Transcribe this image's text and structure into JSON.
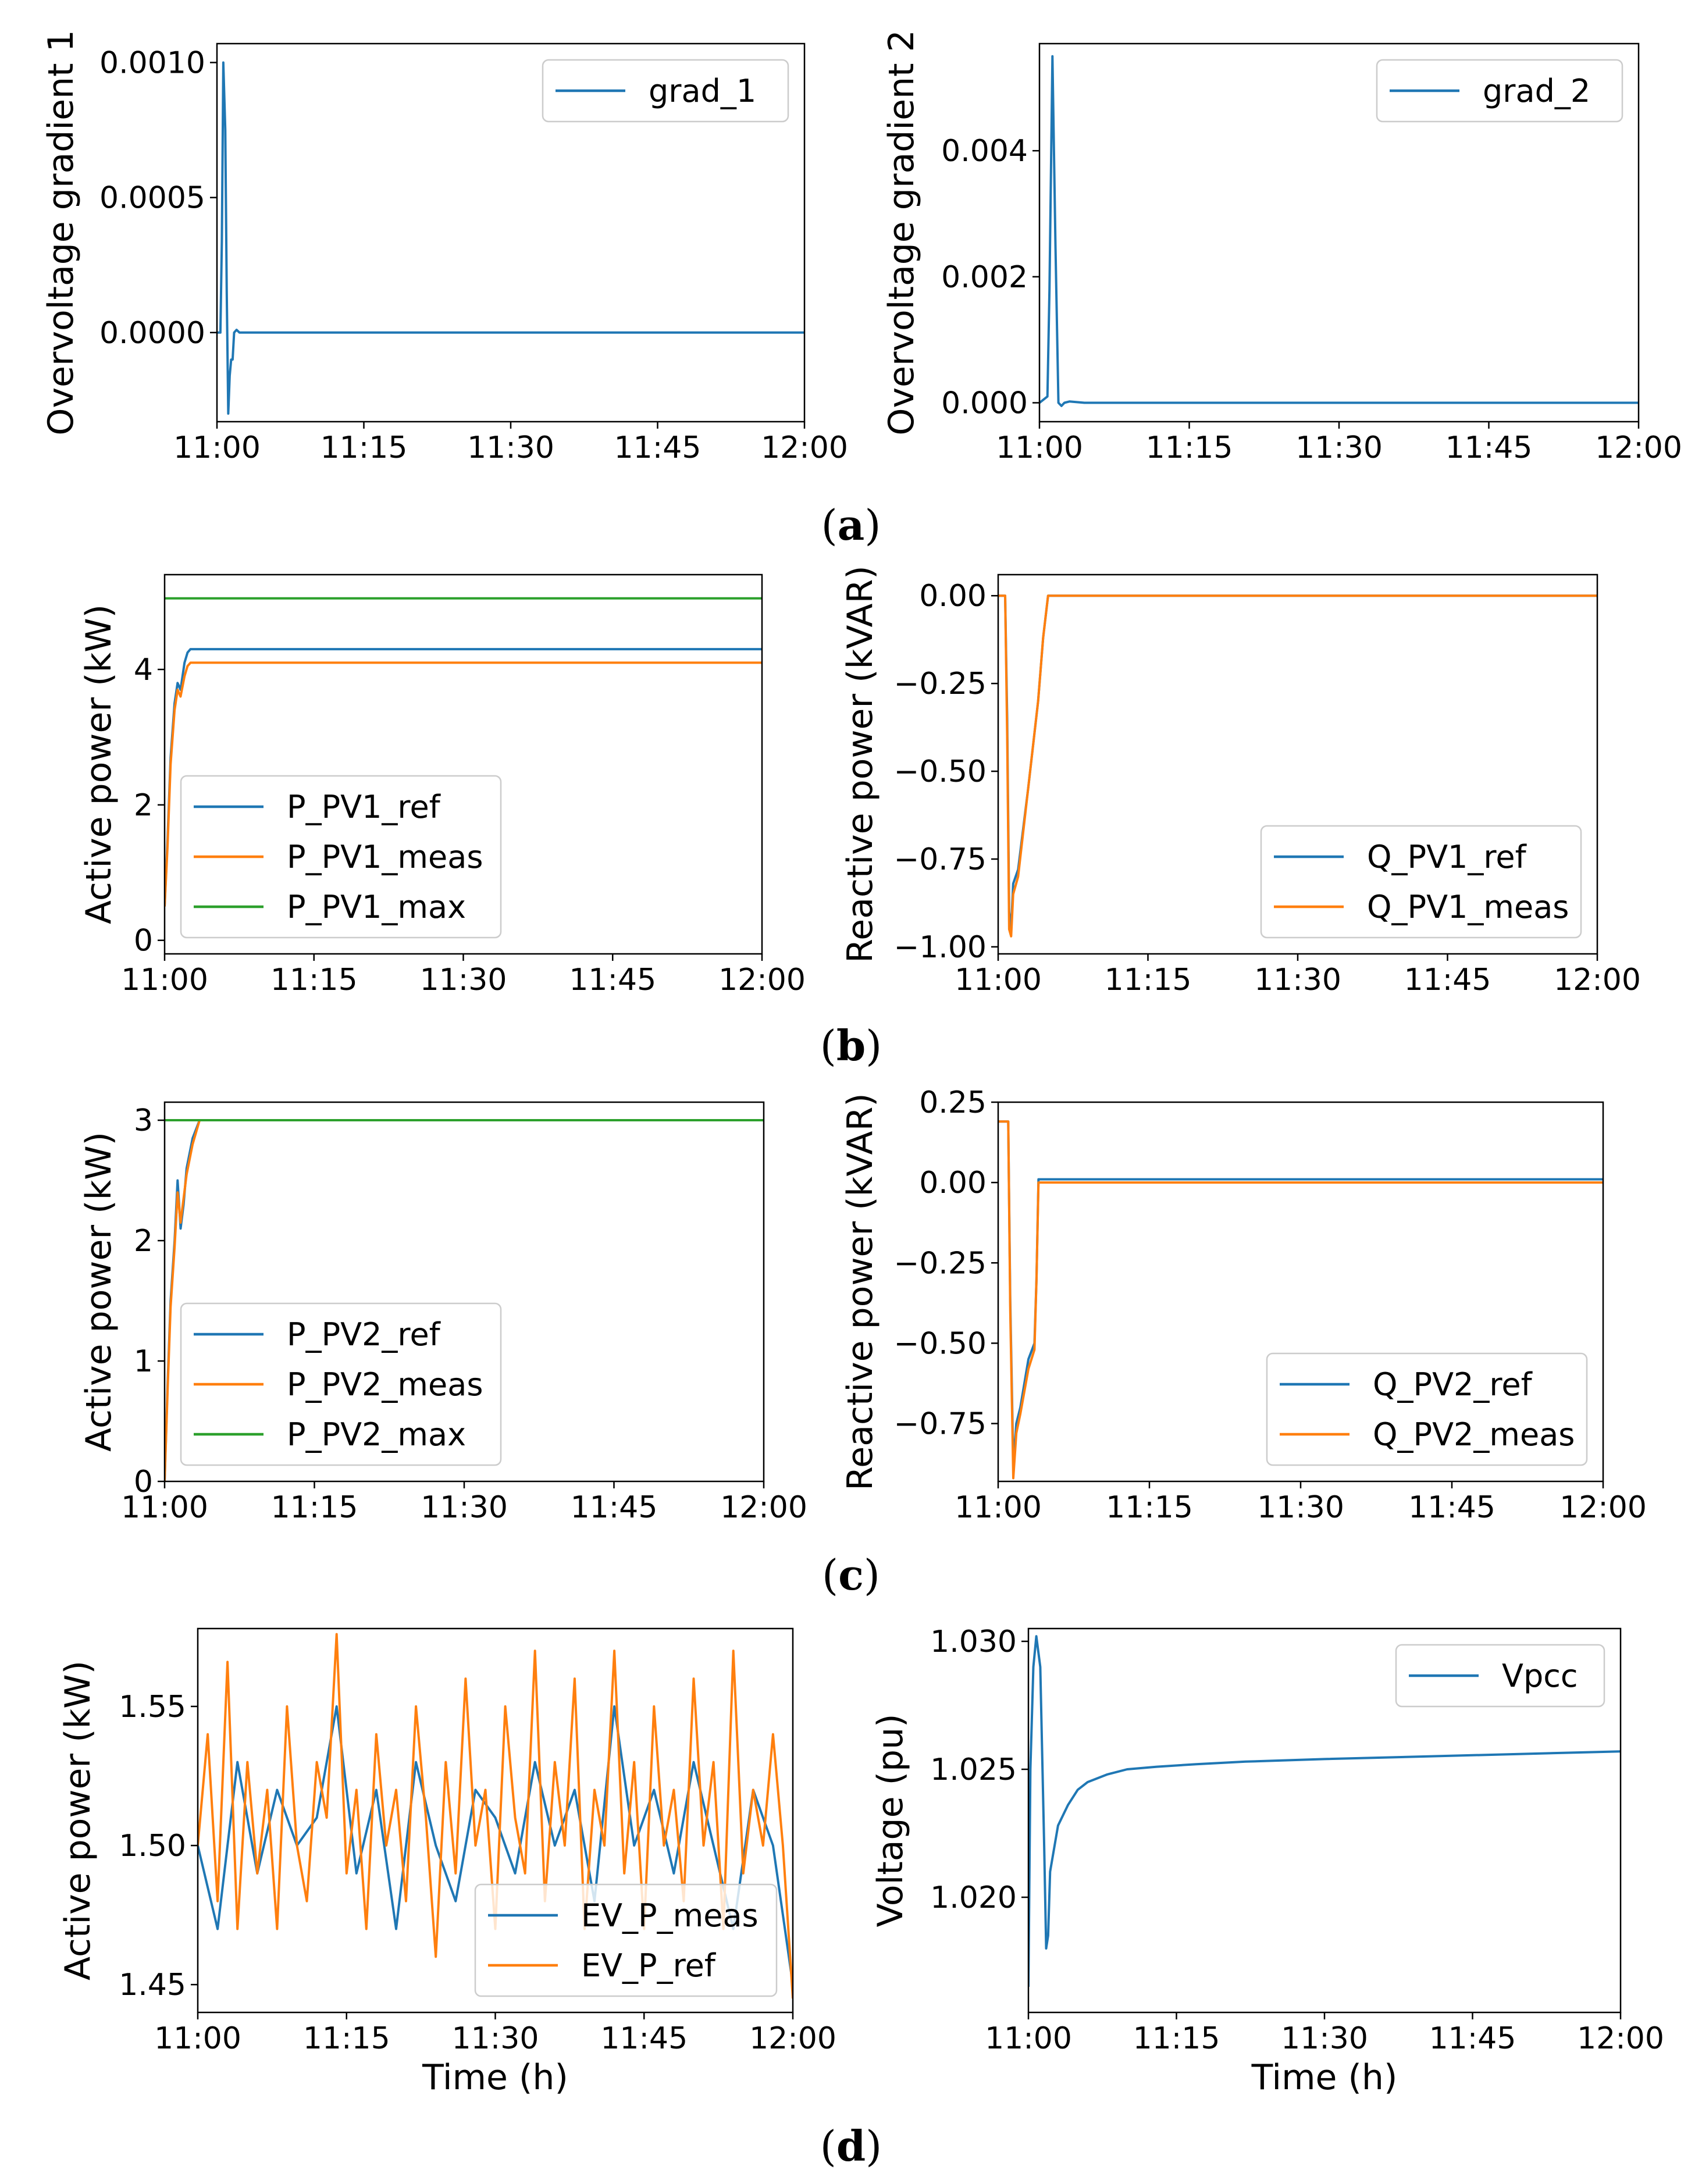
{
  "chart_data": [
    {
      "id": "a-left",
      "type": "line",
      "ylabel": "Overvoltage gradient 1",
      "xlabel": "",
      "xlim": [
        0,
        60
      ],
      "ylim": [
        -0.00033,
        0.00107
      ],
      "xticks": [
        0,
        15,
        30,
        45,
        60
      ],
      "xtick_labels": [
        "11:00",
        "11:15",
        "11:30",
        "11:45",
        "12:00"
      ],
      "yticks": [
        0,
        0.0005,
        0.001
      ],
      "ytick_labels": [
        "0.0000",
        "0.0005",
        "0.0010"
      ],
      "legend_position": "top-right",
      "series": [
        {
          "name": "grad_1",
          "color": "#1f77b4",
          "x": [
            0,
            0.35,
            0.5,
            0.65,
            0.85,
            1.0,
            1.15,
            1.3,
            1.45,
            1.6,
            1.75,
            2.0,
            2.3,
            2.6,
            60
          ],
          "y": [
            0,
            0,
            0.00034,
            0.001,
            0.00075,
            0.00015,
            -0.0003,
            -0.00016,
            -0.0001,
            -0.0001,
            0.0,
            1e-05,
            0.0,
            0.0,
            0.0
          ]
        }
      ]
    },
    {
      "id": "a-right",
      "type": "line",
      "ylabel": "Overvoltage gradient 2",
      "xlabel": "",
      "xlim": [
        0,
        60
      ],
      "ylim": [
        -0.0003,
        0.0057
      ],
      "xticks": [
        0,
        15,
        30,
        45,
        60
      ],
      "xtick_labels": [
        "11:00",
        "11:15",
        "11:30",
        "11:45",
        "12:00"
      ],
      "yticks": [
        0,
        0.002,
        0.004
      ],
      "ytick_labels": [
        "0.000",
        "0.002",
        "0.004"
      ],
      "legend_position": "top-right",
      "series": [
        {
          "name": "grad_2",
          "color": "#1f77b4",
          "x": [
            0,
            0.8,
            1.0,
            1.3,
            1.6,
            1.9,
            2.2,
            2.5,
            3.0,
            4.5,
            60
          ],
          "y": [
            0,
            0.0001,
            0.0018,
            0.0055,
            0.0025,
            0.0,
            -5e-05,
            0.0,
            2e-05,
            0.0,
            0.0
          ]
        }
      ]
    },
    {
      "id": "b-left",
      "type": "line",
      "ylabel": "Active power (kW)",
      "xlabel": "",
      "xlim": [
        0,
        60
      ],
      "ylim": [
        -0.2,
        5.4
      ],
      "xticks": [
        0,
        15,
        30,
        45,
        60
      ],
      "xtick_labels": [
        "11:00",
        "11:15",
        "11:30",
        "11:45",
        "12:00"
      ],
      "yticks": [
        0,
        2,
        4
      ],
      "ytick_labels": [
        "0",
        "2",
        "4"
      ],
      "legend_position": "bottom-left",
      "series": [
        {
          "name": "P_PV1_ref",
          "color": "#1f77b4",
          "x": [
            0,
            0.3,
            0.6,
            1.0,
            1.3,
            1.6,
            2.0,
            2.3,
            2.6,
            3.0,
            60
          ],
          "y": [
            0.5,
            1.5,
            2.7,
            3.5,
            3.8,
            3.7,
            4.1,
            4.25,
            4.3,
            4.3,
            4.3
          ]
        },
        {
          "name": "P_PV1_meas",
          "color": "#ff7f0e",
          "x": [
            0,
            0.3,
            0.6,
            1.0,
            1.3,
            1.6,
            2.0,
            2.3,
            2.6,
            3.0,
            60
          ],
          "y": [
            0.5,
            1.4,
            2.6,
            3.4,
            3.7,
            3.6,
            3.9,
            4.05,
            4.1,
            4.1,
            4.1
          ]
        },
        {
          "name": "P_PV1_max",
          "color": "#2ca02c",
          "x": [
            0,
            60
          ],
          "y": [
            5.05,
            5.05
          ]
        }
      ]
    },
    {
      "id": "b-right",
      "type": "line",
      "ylabel": "Reactive power (kVAR)",
      "xlabel": "",
      "xlim": [
        0,
        60
      ],
      "ylim": [
        -1.02,
        0.06
      ],
      "xticks": [
        0,
        15,
        30,
        45,
        60
      ],
      "xtick_labels": [
        "11:00",
        "11:15",
        "11:30",
        "11:45",
        "12:00"
      ],
      "yticks": [
        -1,
        -0.75,
        -0.5,
        -0.25,
        0
      ],
      "ytick_labels": [
        "−1.00",
        "−0.75",
        "−0.50",
        "−0.25",
        "0.00"
      ],
      "legend_position": "bottom-right",
      "series": [
        {
          "name": "Q_PV1_ref",
          "color": "#1f77b4",
          "x": [
            0,
            0.7,
            0.9,
            1.1,
            1.3,
            1.5,
            2.0,
            3.0,
            4.0,
            4.5,
            5.0,
            60
          ],
          "y": [
            0,
            0,
            -0.35,
            -0.9,
            -0.95,
            -0.82,
            -0.78,
            -0.55,
            -0.3,
            -0.12,
            0.0,
            0.0
          ]
        },
        {
          "name": "Q_PV1_meas",
          "color": "#ff7f0e",
          "x": [
            0,
            0.7,
            0.9,
            1.1,
            1.3,
            1.5,
            2.0,
            3.0,
            4.0,
            4.5,
            5.0,
            60
          ],
          "y": [
            0,
            0,
            -0.4,
            -0.95,
            -0.97,
            -0.85,
            -0.8,
            -0.55,
            -0.3,
            -0.12,
            0.0,
            0.0
          ]
        }
      ]
    },
    {
      "id": "c-left",
      "type": "line",
      "ylabel": "Active power (kW)",
      "xlabel": "",
      "xlim": [
        0,
        60
      ],
      "ylim": [
        0,
        3.15
      ],
      "xticks": [
        0,
        15,
        30,
        45,
        60
      ],
      "xtick_labels": [
        "11:00",
        "11:15",
        "11:30",
        "11:45",
        "12:00"
      ],
      "yticks": [
        0,
        1,
        2,
        3
      ],
      "ytick_labels": [
        "0",
        "1",
        "2",
        "3"
      ],
      "legend_position": "bottom-left",
      "series": [
        {
          "name": "P_PV2_ref",
          "color": "#1f77b4",
          "x": [
            0,
            0.3,
            0.6,
            1.0,
            1.3,
            1.6,
            1.9,
            2.2,
            2.8,
            3.5,
            4.0,
            60
          ],
          "y": [
            0,
            0.8,
            1.5,
            2.0,
            2.5,
            2.1,
            2.3,
            2.6,
            2.85,
            3.0,
            3.0,
            3.0
          ]
        },
        {
          "name": "P_PV2_meas",
          "color": "#ff7f0e",
          "x": [
            0,
            0.3,
            0.6,
            1.0,
            1.3,
            1.6,
            1.9,
            2.2,
            2.8,
            3.5,
            4.0,
            60
          ],
          "y": [
            0,
            0.75,
            1.45,
            1.95,
            2.4,
            2.15,
            2.35,
            2.55,
            2.8,
            3.0,
            3.0,
            3.0
          ]
        },
        {
          "name": "P_PV2_max",
          "color": "#2ca02c",
          "x": [
            0,
            60
          ],
          "y": [
            3.0,
            3.0
          ]
        }
      ]
    },
    {
      "id": "c-right",
      "type": "line",
      "ylabel": "Reactive power (kVAR)",
      "xlabel": "",
      "xlim": [
        0,
        60
      ],
      "ylim": [
        -0.93,
        0.25
      ],
      "xticks": [
        0,
        15,
        30,
        45,
        60
      ],
      "xtick_labels": [
        "11:00",
        "11:15",
        "11:30",
        "11:45",
        "12:00"
      ],
      "yticks": [
        -0.75,
        -0.5,
        -0.25,
        0,
        0.25
      ],
      "ytick_labels": [
        "−0.75",
        "−0.50",
        "−0.25",
        "0.00",
        "0.25"
      ],
      "legend_position": "bottom-right",
      "series": [
        {
          "name": "Q_PV2_ref",
          "color": "#1f77b4",
          "x": [
            0,
            1.0,
            1.2,
            1.5,
            1.8,
            2.2,
            3.0,
            3.6,
            3.8,
            4.0,
            60
          ],
          "y": [
            0.19,
            0.19,
            -0.37,
            -0.88,
            -0.75,
            -0.7,
            -0.55,
            -0.5,
            -0.3,
            0.01,
            0.01
          ]
        },
        {
          "name": "Q_PV2_meas",
          "color": "#ff7f0e",
          "x": [
            0,
            1.0,
            1.2,
            1.5,
            1.8,
            2.2,
            3.0,
            3.6,
            3.8,
            4.0,
            60
          ],
          "y": [
            0.19,
            0.19,
            -0.4,
            -0.92,
            -0.78,
            -0.72,
            -0.58,
            -0.52,
            -0.3,
            0.0,
            0.0
          ]
        }
      ]
    },
    {
      "id": "d-left",
      "type": "line",
      "ylabel": "Active power (kW)",
      "xlabel": "Time (h)",
      "xlim": [
        0,
        60
      ],
      "ylim": [
        1.44,
        1.578
      ],
      "xticks": [
        0,
        15,
        30,
        45,
        60
      ],
      "xtick_labels": [
        "11:00",
        "11:15",
        "11:30",
        "11:45",
        "12:00"
      ],
      "yticks": [
        1.45,
        1.5,
        1.55
      ],
      "ytick_labels": [
        "1.45",
        "1.50",
        "1.55"
      ],
      "legend_position": "bottom-right",
      "series": [
        {
          "name": "EV_P_meas",
          "color": "#1f77b4",
          "x": [
            0,
            2,
            4,
            6,
            8,
            10,
            12,
            14,
            16,
            18,
            20,
            22,
            24,
            26,
            28,
            30,
            32,
            34,
            36,
            38,
            40,
            42,
            44,
            46,
            48,
            50,
            52,
            54,
            56,
            58,
            60
          ],
          "y": [
            1.5,
            1.47,
            1.53,
            1.49,
            1.52,
            1.5,
            1.51,
            1.55,
            1.49,
            1.52,
            1.47,
            1.53,
            1.5,
            1.48,
            1.52,
            1.51,
            1.49,
            1.53,
            1.5,
            1.52,
            1.48,
            1.55,
            1.5,
            1.52,
            1.49,
            1.53,
            1.5,
            1.47,
            1.52,
            1.5,
            1.45
          ]
        },
        {
          "name": "EV_P_ref",
          "color": "#ff7f0e",
          "x": [
            0,
            1,
            2,
            3,
            4,
            5,
            6,
            7,
            8,
            9,
            10,
            11,
            12,
            13,
            14,
            15,
            16,
            17,
            18,
            19,
            20,
            21,
            22,
            23,
            24,
            25,
            26,
            27,
            28,
            29,
            30,
            31,
            32,
            33,
            34,
            35,
            36,
            37,
            38,
            39,
            40,
            41,
            42,
            43,
            44,
            45,
            46,
            47,
            48,
            49,
            50,
            51,
            52,
            53,
            54,
            55,
            56,
            57,
            58,
            59,
            60
          ],
          "y": [
            1.5,
            1.54,
            1.48,
            1.566,
            1.47,
            1.53,
            1.49,
            1.52,
            1.47,
            1.55,
            1.5,
            1.48,
            1.53,
            1.51,
            1.576,
            1.49,
            1.52,
            1.47,
            1.54,
            1.5,
            1.52,
            1.48,
            1.55,
            1.51,
            1.46,
            1.53,
            1.49,
            1.56,
            1.5,
            1.52,
            1.47,
            1.55,
            1.51,
            1.49,
            1.57,
            1.48,
            1.53,
            1.5,
            1.56,
            1.47,
            1.52,
            1.5,
            1.57,
            1.49,
            1.53,
            1.47,
            1.55,
            1.5,
            1.52,
            1.48,
            1.56,
            1.5,
            1.53,
            1.47,
            1.57,
            1.49,
            1.52,
            1.5,
            1.54,
            1.5,
            1.445
          ]
        }
      ]
    },
    {
      "id": "d-right",
      "type": "line",
      "ylabel": "Voltage (pu)",
      "xlabel": "Time (h)",
      "xlim": [
        0,
        60
      ],
      "ylim": [
        1.0155,
        1.0305
      ],
      "xticks": [
        0,
        15,
        30,
        45,
        60
      ],
      "xtick_labels": [
        "11:00",
        "11:15",
        "11:30",
        "11:45",
        "12:00"
      ],
      "yticks": [
        1.02,
        1.025,
        1.03
      ],
      "ytick_labels": [
        "1.020",
        "1.025",
        "1.030"
      ],
      "legend_position": "top-right",
      "series": [
        {
          "name": "Vpcc",
          "color": "#1f77b4",
          "x": [
            0,
            0.2,
            0.5,
            0.8,
            1.2,
            1.6,
            1.8,
            2.0,
            2.2,
            3.0,
            4.0,
            5.0,
            6.0,
            8.0,
            10.0,
            13.0,
            17.0,
            22.0,
            30.0,
            40.0,
            50.0,
            60.0
          ],
          "y": [
            1.0165,
            1.025,
            1.029,
            1.0302,
            1.029,
            1.022,
            1.018,
            1.0185,
            1.021,
            1.0228,
            1.0236,
            1.0242,
            1.0245,
            1.0248,
            1.025,
            1.0251,
            1.0252,
            1.0253,
            1.0254,
            1.0255,
            1.0256,
            1.0257
          ]
        }
      ]
    }
  ],
  "captions": [
    {
      "paren_open": "(",
      "letter": "a",
      "paren_close": ")"
    },
    {
      "paren_open": "(",
      "letter": "b",
      "paren_close": ")"
    },
    {
      "paren_open": "(",
      "letter": "c",
      "paren_close": ")"
    },
    {
      "paren_open": "(",
      "letter": "d",
      "paren_close": ")"
    }
  ]
}
